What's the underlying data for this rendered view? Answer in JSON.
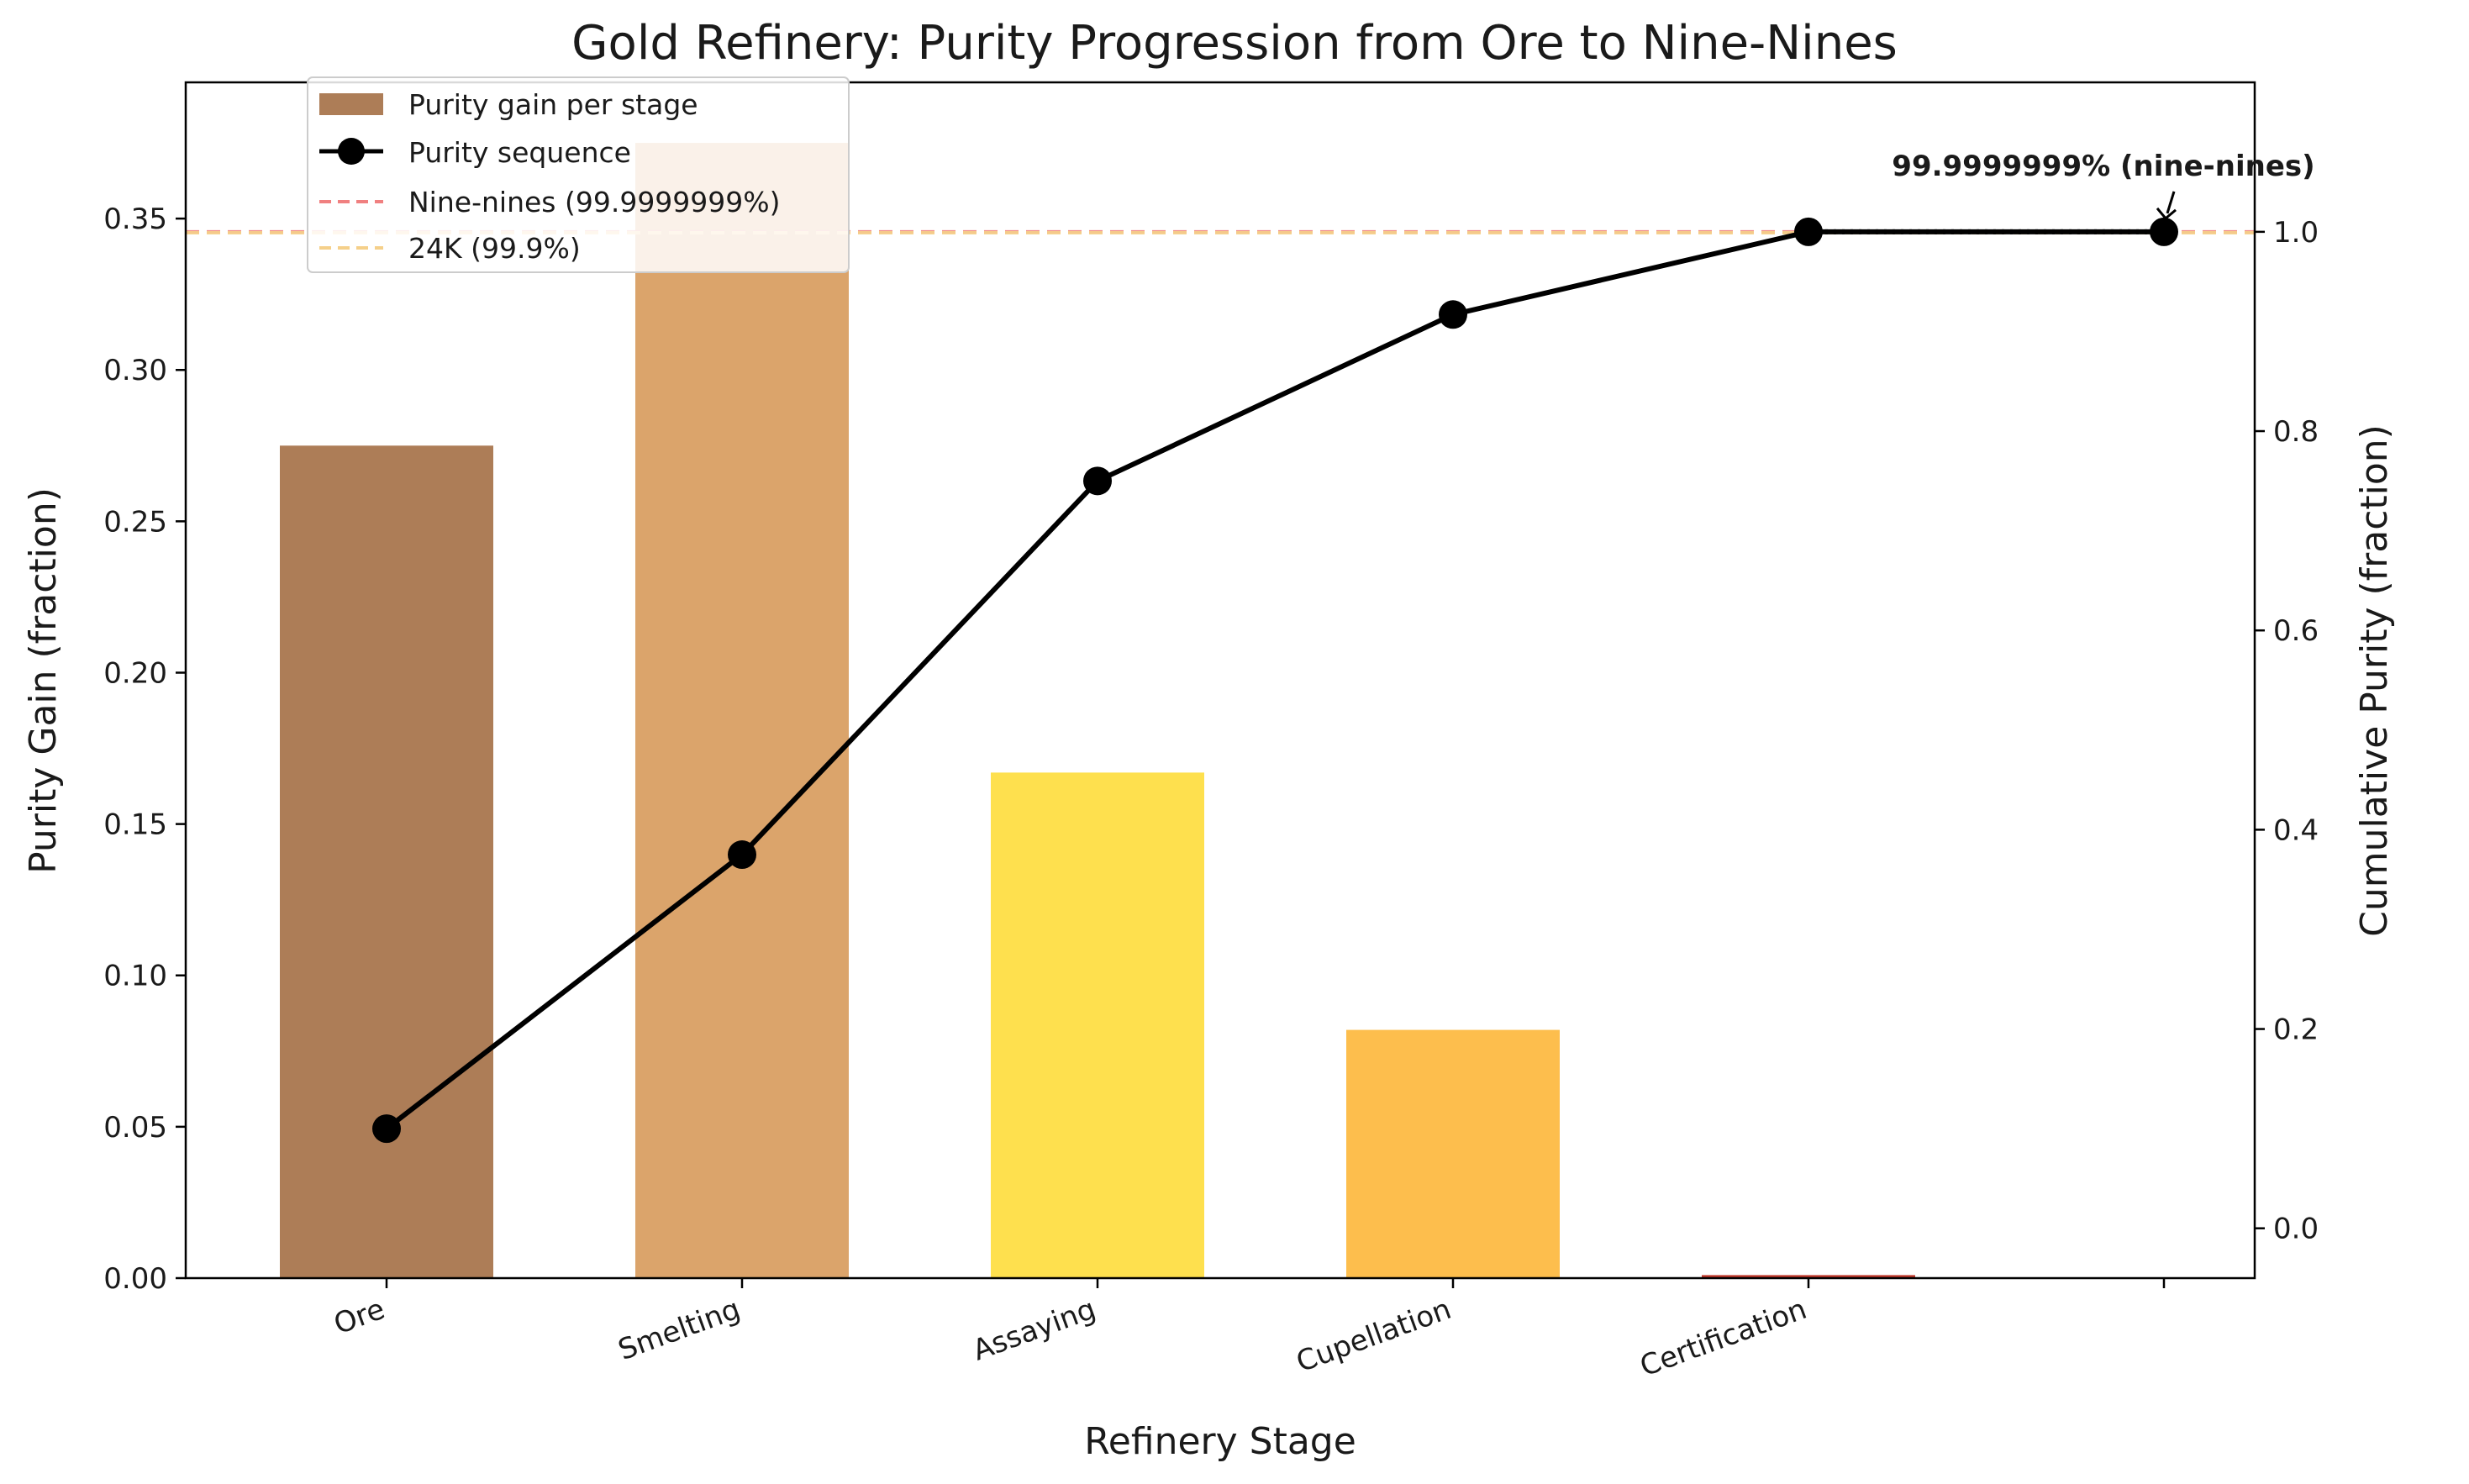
{
  "chart_data": {
    "type": "bar",
    "title": "Gold Refinery: Purity Progression from Ore to Nine-Nines",
    "xlabel": "Refinery Stage",
    "ylabel": "Purity Gain (fraction)",
    "y2label": "Cumulative Purity (fraction)",
    "categories": [
      "Ore",
      "Smelting",
      "Assaying",
      "Cupellation",
      "Certification"
    ],
    "ylim": [
      0,
      0.395
    ],
    "y2lim": [
      -0.05,
      1.15
    ],
    "yticks": [
      "0.00",
      "0.05",
      "0.10",
      "0.15",
      "0.20",
      "0.25",
      "0.30",
      "0.35"
    ],
    "y2ticks": [
      "0.0",
      "0.2",
      "0.4",
      "0.6",
      "0.8",
      "1.0"
    ],
    "grid": false,
    "legend_position": "top-left",
    "series": [
      {
        "name": "Purity gain per stage",
        "type": "bar",
        "axis": "left",
        "values": [
          0.275,
          0.375,
          0.167,
          0.082,
          0.001
        ],
        "colors": [
          "#ad7d57",
          "#dba46b",
          "#fee04e",
          "#fdbe4d",
          "#c0392b"
        ]
      },
      {
        "name": "Purity sequence",
        "type": "line",
        "axis": "right",
        "x": [
          "Ore",
          "Smelting",
          "Assaying",
          "Cupellation",
          "Certification",
          ""
        ],
        "values": [
          0.1,
          0.375,
          0.75,
          0.917,
          1.0,
          1.0
        ],
        "color": "#000000"
      }
    ],
    "reference_lines": [
      {
        "name": "Nine-nines (99.9999999%)",
        "axis": "right",
        "value": 0.999999999,
        "color": "#f08080",
        "style": "dashed"
      },
      {
        "name": "24K (99.9%)",
        "axis": "right",
        "value": 0.999,
        "color": "#f5d08a",
        "style": "dashed"
      }
    ],
    "annotation": {
      "text": "99.9999999% (nine-nines)",
      "x_index": 5,
      "y": 1.0
    }
  }
}
